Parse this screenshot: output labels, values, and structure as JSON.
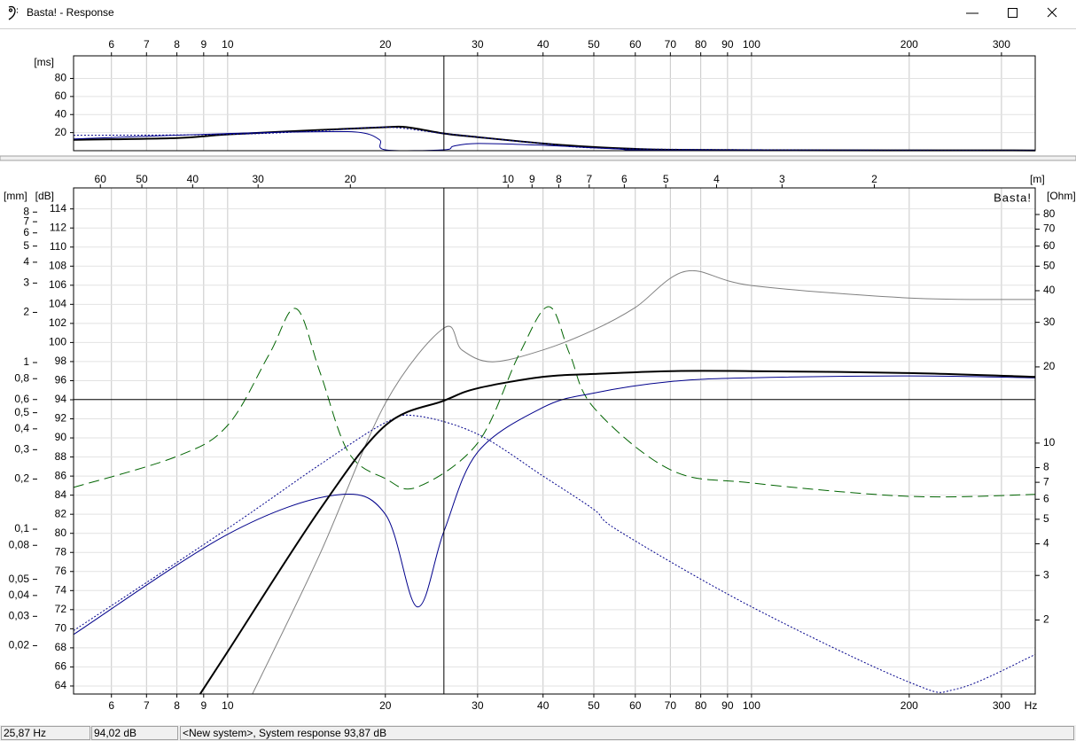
{
  "window": {
    "title": "Basta! - Response"
  },
  "status_bar": [
    {
      "value": 25.87,
      "label": "25,87 Hz"
    },
    {
      "value": 94.02,
      "label": "94,02 dB"
    },
    "<New system>, System response 93,87 dB"
  ],
  "chart_data": [
    {
      "type": "line",
      "xscale": "log",
      "xlim": [
        5.08,
        348
      ],
      "xticks": [
        6,
        7,
        8,
        9,
        10,
        20,
        30,
        40,
        50,
        60,
        70,
        80,
        90,
        100,
        200,
        300
      ],
      "ylabel": "[ms]",
      "ylim": [
        0,
        105
      ],
      "yticks": [
        20,
        40,
        60,
        80
      ],
      "grid": true,
      "series": [
        {
          "color": "#000000",
          "style": "solid",
          "width": 2,
          "x": [
            5.08,
            8,
            10,
            15,
            20,
            22,
            25.87,
            30,
            40,
            50,
            60,
            70,
            100,
            348
          ],
          "values": [
            12,
            14,
            18,
            23,
            26,
            26,
            19,
            15,
            8,
            4,
            2,
            1,
            0.5,
            0.3
          ]
        },
        {
          "color": "#00008b",
          "style": "solid",
          "width": 1,
          "x": [
            5.08,
            10,
            15,
            18,
            19.5,
            20,
            25.87,
            27,
            30,
            40,
            55,
            70,
            348
          ],
          "values": [
            13,
            19,
            21,
            20,
            12,
            1,
            1,
            5,
            8,
            6,
            2,
            0.5,
            0.3
          ]
        },
        {
          "color": "#00008b",
          "style": "dotted",
          "width": 1,
          "x": [
            5.08,
            10,
            15,
            20,
            25,
            30,
            40,
            60,
            348
          ],
          "values": [
            17,
            18,
            22,
            26,
            20,
            15,
            8,
            2,
            0.3
          ]
        }
      ]
    },
    {
      "type": "line",
      "xscale": "log",
      "xlim": [
        5.08,
        348
      ],
      "xticks": [
        6,
        7,
        8,
        9,
        10,
        20,
        30,
        40,
        50,
        60,
        70,
        80,
        90,
        100,
        200,
        300
      ],
      "xlabel": "Hz",
      "x2label": "[m]",
      "x2scale": "log",
      "x2lim": [
        67.5,
        0.986
      ],
      "x2ticks": [
        60,
        50,
        40,
        30,
        20,
        10,
        9,
        8,
        7,
        6,
        5,
        4,
        3,
        2
      ],
      "ylabel": "[dB]",
      "ylim": [
        63.16,
        116.2
      ],
      "yticks": [
        64,
        66,
        68,
        70,
        72,
        74,
        76,
        78,
        80,
        82,
        84,
        86,
        88,
        90,
        92,
        94,
        96,
        98,
        100,
        102,
        104,
        106,
        108,
        110,
        112,
        114
      ],
      "y2label": "[Ohm]",
      "y2scale": "log",
      "y2lim": [
        1.02,
        101.9
      ],
      "y2ticks": [
        2,
        3,
        4,
        5,
        6,
        7,
        8,
        10,
        20,
        30,
        40,
        50,
        60,
        70,
        80
      ],
      "y3label": "[mm]",
      "y3scale": "log",
      "y3lim": [
        0.01025,
        11.17
      ],
      "y3ticks": [
        {
          "value": 0.02,
          "label": "0,02"
        },
        {
          "value": 0.03,
          "label": "0,03"
        },
        {
          "value": 0.04,
          "label": "0,04"
        },
        {
          "value": 0.05,
          "label": "0,05"
        },
        {
          "value": 0.08,
          "label": "0,08"
        },
        {
          "value": 0.1,
          "label": "0,1"
        },
        {
          "value": 0.2,
          "label": "0,2"
        },
        {
          "value": 0.3,
          "label": "0,3"
        },
        {
          "value": 0.4,
          "label": "0,4"
        },
        {
          "value": 0.5,
          "label": "0,5"
        },
        {
          "value": 0.6,
          "label": "0,6"
        },
        {
          "value": 0.8,
          "label": "0,8"
        },
        1,
        2,
        3,
        4,
        5,
        6,
        7,
        8
      ],
      "watermark": "Basta!",
      "grid": true,
      "series": [
        {
          "color": "#808080",
          "style": "solid",
          "width": 1,
          "axis": "y3",
          "x": [
            11.15,
            15,
            20,
            25.87,
            28,
            32,
            40,
            50,
            60,
            75,
            100,
            200,
            348
          ],
          "values": [
            0.01025,
            0.0709,
            0.569,
            1.61,
            1.19,
            1.01,
            1.19,
            1.57,
            2.14,
            3.53,
            2.9,
            2.44,
            2.39
          ]
        },
        {
          "color": "#006400",
          "style": "dashed",
          "width": 1,
          "axis": "y2",
          "x": [
            5.08,
            8,
            10,
            12,
            13.5,
            15,
            17,
            20,
            23,
            30,
            36,
            41,
            45,
            50,
            70,
            100,
            200,
            348
          ],
          "values": [
            6.68,
            8.86,
            11.75,
            22.4,
            34,
            19.1,
            9.2,
            7.24,
            6.7,
            10,
            22.4,
            34.6,
            22.4,
            13.8,
            7.85,
            6.96,
            6.16,
            6.27
          ]
        },
        {
          "color": "#00008b",
          "style": "dotted",
          "width": 1,
          "x": [
            5.08,
            10,
            15,
            20,
            23,
            30,
            40,
            50,
            56,
            100,
            200,
            247,
            348
          ],
          "values": [
            69.8,
            80.5,
            87.2,
            91.6,
            92.3,
            90.4,
            86,
            82.5,
            80.2,
            72.3,
            64.4,
            63.7,
            67.3
          ]
        },
        {
          "color": "#00008b",
          "style": "solid",
          "width": 1,
          "x": [
            5.08,
            10,
            16,
            20,
            23,
            25.87,
            30,
            40,
            50,
            70,
            100,
            200,
            348
          ],
          "values": [
            69.4,
            79.9,
            84,
            82,
            72.3,
            80.2,
            88.5,
            93.2,
            94.7,
            95.9,
            96.3,
            96.5,
            96.3
          ]
        },
        {
          "color": "#000000",
          "style": "solid",
          "width": 2,
          "x": [
            8.86,
            10,
            15,
            20,
            25.87,
            30,
            40,
            50,
            70,
            100,
            200,
            348
          ],
          "values": [
            63.16,
            67.6,
            82.5,
            91.3,
            93.9,
            95.2,
            96.4,
            96.7,
            97,
            97,
            96.8,
            96.4
          ]
        }
      ]
    }
  ]
}
